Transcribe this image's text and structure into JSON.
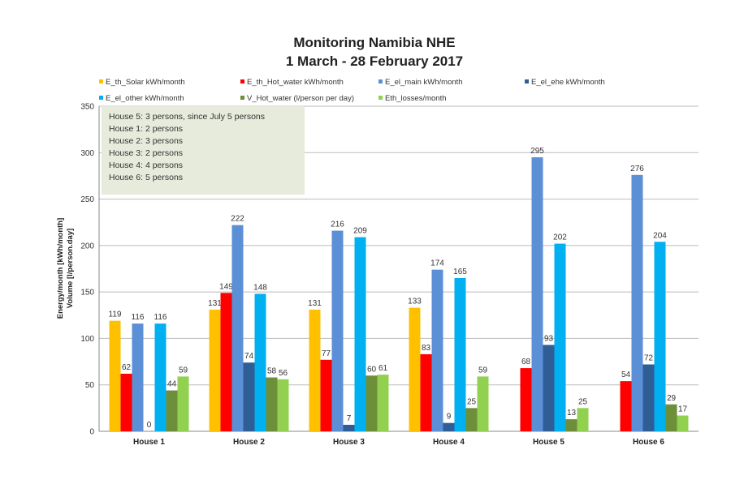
{
  "chart_data": {
    "type": "bar",
    "title": [
      "Monitoring Namibia NHE",
      "1 March - 28 February 2017"
    ],
    "ylabel": [
      "Energy/month  [kWh/month]",
      "Volume [l/person.day]"
    ],
    "xlabel": "",
    "ylim": [
      0,
      350
    ],
    "yticks": [
      0,
      50,
      100,
      150,
      200,
      250,
      300,
      350
    ],
    "grid": true,
    "legend_placement": "top",
    "categories": [
      "House 1",
      "House 2",
      "House 3",
      "House 4",
      "House 5",
      "House  6"
    ],
    "series": [
      {
        "name": "E_th_Solar kWh/month",
        "color": "#ffc000",
        "values": [
          119,
          131,
          131,
          133,
          null,
          null
        ]
      },
      {
        "name": "E_th_Hot_water kWh/month",
        "color": "#ff0000",
        "values": [
          62,
          149,
          77,
          83,
          68,
          54
        ]
      },
      {
        "name": "E_el_main kWh/month",
        "color": "#5b8fd6",
        "values": [
          116,
          222,
          216,
          174,
          295,
          276
        ]
      },
      {
        "name": "E_el_ehe kWh/month",
        "color": "#2f5e96",
        "values": [
          0,
          74,
          7,
          9,
          93,
          72
        ]
      },
      {
        "name": "E_el_other kWh/month",
        "color": "#00b0f0",
        "values": [
          116,
          148,
          209,
          165,
          202,
          204
        ]
      },
      {
        "name": "V_Hot_water (l/person per day)",
        "color": "#6e8f3a",
        "values": [
          44,
          58,
          60,
          25,
          13,
          29
        ]
      },
      {
        "name": "Eth_losses/month",
        "color": "#92d050",
        "values": [
          59,
          56,
          61,
          59,
          25,
          17
        ]
      }
    ],
    "annotation": [
      "House 5: 3 persons, since July 5 persons",
      "House 1: 2 persons",
      "House 2: 3 persons",
      "House 3: 2 persons",
      "House 4: 4 persons",
      "House 6: 5 persons"
    ]
  }
}
